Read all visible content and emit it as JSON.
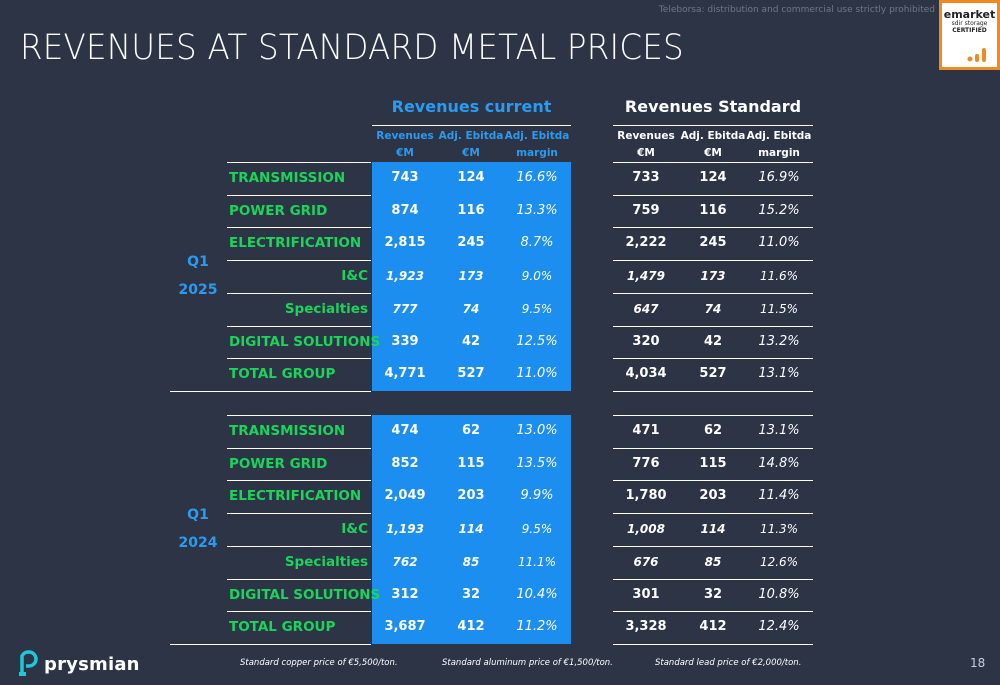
{
  "disclaimer": "Teleborsa: distribution and commercial use strictly prohibited",
  "badge": {
    "brand": "emarket",
    "sub": "sdir storage",
    "cert": "CERTIFIED"
  },
  "title": "REVENUES AT STANDARD METAL PRICES",
  "headers": {
    "current": "Revenues current",
    "standard": "Revenues Standard",
    "current_cols": [
      [
        "Revenues",
        "€M"
      ],
      [
        "Adj. Ebitda",
        "€M"
      ],
      [
        "Adj. Ebitda",
        "margin"
      ]
    ],
    "standard_cols": [
      [
        "Revenues",
        "€M"
      ],
      [
        "Adj. Ebitda",
        "€M"
      ],
      [
        "Adj. Ebitda",
        "margin"
      ]
    ]
  },
  "blocks": [
    {
      "period": [
        "Q1",
        "2025"
      ],
      "rows": [
        {
          "label": "TRANSMISSION",
          "sub": false,
          "cur": [
            "743",
            "124",
            "16.6%"
          ],
          "std": [
            "733",
            "124",
            "16.9%"
          ]
        },
        {
          "label": "POWER GRID",
          "sub": false,
          "cur": [
            "874",
            "116",
            "13.3%"
          ],
          "std": [
            "759",
            "116",
            "15.2%"
          ]
        },
        {
          "label": "ELECTRIFICATION",
          "sub": false,
          "cur": [
            "2,815",
            "245",
            "8.7%"
          ],
          "std": [
            "2,222",
            "245",
            "11.0%"
          ]
        },
        {
          "label": "I&C",
          "sub": true,
          "cur": [
            "1,923",
            "173",
            "9.0%"
          ],
          "std": [
            "1,479",
            "173",
            "11.6%"
          ]
        },
        {
          "label": "Specialties",
          "sub": true,
          "cur": [
            "777",
            "74",
            "9.5%"
          ],
          "std": [
            "647",
            "74",
            "11.5%"
          ]
        },
        {
          "label": "DIGITAL SOLUTIONS",
          "sub": false,
          "cur": [
            "339",
            "42",
            "12.5%"
          ],
          "std": [
            "320",
            "42",
            "13.2%"
          ]
        },
        {
          "label": "TOTAL GROUP",
          "sub": false,
          "cur": [
            "4,771",
            "527",
            "11.0%"
          ],
          "std": [
            "4,034",
            "527",
            "13.1%"
          ]
        }
      ]
    },
    {
      "period": [
        "Q1",
        "2024"
      ],
      "rows": [
        {
          "label": "TRANSMISSION",
          "sub": false,
          "cur": [
            "474",
            "62",
            "13.0%"
          ],
          "std": [
            "471",
            "62",
            "13.1%"
          ]
        },
        {
          "label": "POWER GRID",
          "sub": false,
          "cur": [
            "852",
            "115",
            "13.5%"
          ],
          "std": [
            "776",
            "115",
            "14.8%"
          ]
        },
        {
          "label": "ELECTRIFICATION",
          "sub": false,
          "cur": [
            "2,049",
            "203",
            "9.9%"
          ],
          "std": [
            "1,780",
            "203",
            "11.4%"
          ]
        },
        {
          "label": "I&C",
          "sub": true,
          "cur": [
            "1,193",
            "114",
            "9.5%"
          ],
          "std": [
            "1,008",
            "114",
            "11.3%"
          ]
        },
        {
          "label": "Specialties",
          "sub": true,
          "cur": [
            "762",
            "85",
            "11.1%"
          ],
          "std": [
            "676",
            "85",
            "12.6%"
          ]
        },
        {
          "label": "DIGITAL SOLUTIONS",
          "sub": false,
          "cur": [
            "312",
            "32",
            "10.4%"
          ],
          "std": [
            "301",
            "32",
            "10.8%"
          ]
        },
        {
          "label": "TOTAL GROUP",
          "sub": false,
          "cur": [
            "3,687",
            "412",
            "11.2%"
          ],
          "std": [
            "3,328",
            "412",
            "12.4%"
          ]
        }
      ]
    }
  ],
  "footnotes": [
    "Standard copper price of €5,500/ton.",
    "Standard aluminum price of €1,500/ton.",
    "Standard lead price of €2,000/ton."
  ],
  "logo_text": "prysmian",
  "page_number": "18",
  "colors": {
    "background": "#2c3446",
    "accent_blue": "#1b8ef0",
    "label_green": "#1bd45a",
    "badge_border": "#f08a1e"
  }
}
